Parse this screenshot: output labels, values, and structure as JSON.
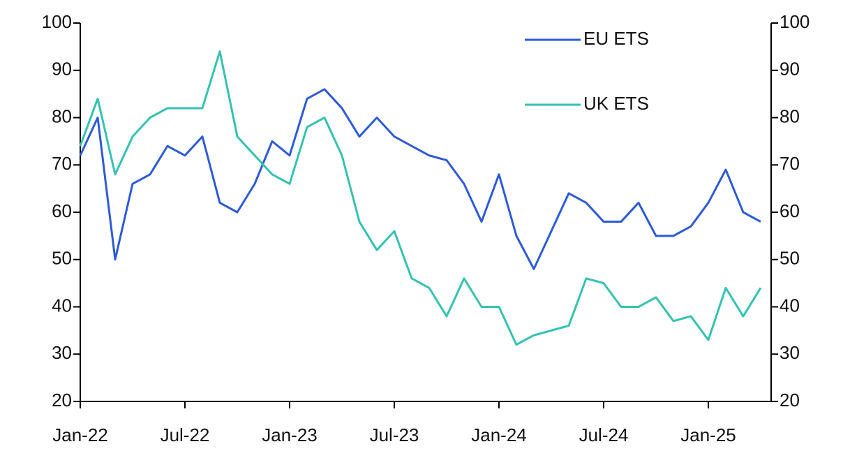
{
  "chart_data": {
    "type": "line",
    "x": [
      "Jan-22",
      "Feb-22",
      "Mar-22",
      "Apr-22",
      "May-22",
      "Jun-22",
      "Jul-22",
      "Aug-22",
      "Sep-22",
      "Oct-22",
      "Nov-22",
      "Dec-22",
      "Jan-23",
      "Feb-23",
      "Mar-23",
      "Apr-23",
      "May-23",
      "Jun-23",
      "Jul-23",
      "Aug-23",
      "Sep-23",
      "Oct-23",
      "Nov-23",
      "Dec-23",
      "Jan-24",
      "Feb-24",
      "Mar-24",
      "Apr-24",
      "May-24",
      "Jun-24",
      "Jul-24",
      "Aug-24",
      "Sep-24",
      "Oct-24",
      "Nov-24",
      "Dec-24",
      "Jan-25",
      "Feb-25",
      "Mar-25",
      "Apr-25"
    ],
    "series": [
      {
        "name": "EU ETS",
        "color": "#2c5bd8",
        "values": [
          72,
          80,
          50,
          66,
          68,
          74,
          72,
          76,
          62,
          60,
          66,
          75,
          72,
          84,
          86,
          82,
          76,
          80,
          76,
          74,
          72,
          71,
          66,
          58,
          68,
          55,
          48,
          56,
          64,
          62,
          58,
          58,
          62,
          55,
          55,
          57,
          62,
          69,
          60,
          58
        ]
      },
      {
        "name": "UK ETS",
        "color": "#34c2b2",
        "axis": "y2",
        "values": [
          74,
          84,
          68,
          76,
          80,
          82,
          82,
          82,
          94,
          76,
          72,
          68,
          66,
          78,
          80,
          72,
          58,
          52,
          56,
          46,
          44,
          38,
          46,
          40,
          40,
          32,
          34,
          35,
          36,
          46,
          45,
          40,
          40,
          42,
          37,
          38,
          33,
          44,
          38,
          44
        ]
      }
    ],
    "xticks": [
      "Jan-22",
      "Jul-22",
      "Jan-23",
      "Jul-23",
      "Jan-24",
      "Jul-24",
      "Jan-25"
    ],
    "ylim": [
      20,
      100
    ],
    "yticks": [
      20,
      30,
      40,
      50,
      60,
      70,
      80,
      90,
      100
    ],
    "y2lim": [
      20,
      100
    ],
    "y2ticks": [
      20,
      30,
      40,
      50,
      60,
      70,
      80,
      90,
      100
    ],
    "legend": "upper right",
    "grid": false
  }
}
